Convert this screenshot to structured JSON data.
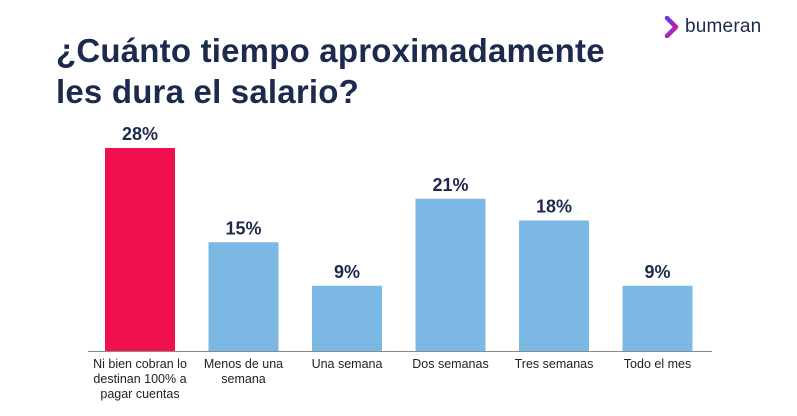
{
  "title": "¿Cuánto tiempo aproximadamente les dura el salario?",
  "logo": {
    "text": "bumeran",
    "icon": "bumeran-chevron-icon",
    "colors": [
      "#5b3df5",
      "#e4168a"
    ]
  },
  "colors": {
    "highlight": "#f0104e",
    "bar": "#7bb8e3",
    "title": "#1c2a4d",
    "axis": "#8a8a8a"
  },
  "chart_data": {
    "type": "bar",
    "categories": [
      "Ni bien cobran lo destinan 100% a pagar cuentas",
      "Menos de una semana",
      "Una semana",
      "Dos semanas",
      "Tres semanas",
      "Todo el mes"
    ],
    "category_lines": [
      [
        "Ni bien cobran lo",
        "destinan 100% a",
        "pagar cuentas"
      ],
      [
        "Menos de una",
        "semana"
      ],
      [
        "Una semana"
      ],
      [
        "Dos semanas"
      ],
      [
        "Tres semanas"
      ],
      [
        "Todo el mes"
      ]
    ],
    "values": [
      28,
      15,
      9,
      21,
      18,
      9
    ],
    "data_labels": [
      "28%",
      "15%",
      "9%",
      "21%",
      "18%",
      "9%"
    ],
    "unit": "%",
    "highlight_index": 0,
    "ylim": [
      0,
      28
    ],
    "grid": false,
    "legend": "none"
  }
}
